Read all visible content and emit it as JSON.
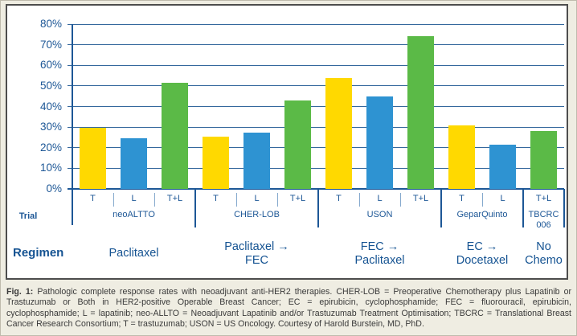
{
  "chart_data": {
    "type": "bar",
    "title": "",
    "ylabel": "",
    "ylim": [
      0,
      80
    ],
    "grid": true,
    "yticks": [
      {
        "value": 80,
        "label": "80%"
      },
      {
        "value": 70,
        "label": "70%"
      },
      {
        "value": 60,
        "label": "60%"
      },
      {
        "value": 50,
        "label": "50%"
      },
      {
        "value": 40,
        "label": "40%"
      },
      {
        "value": 30,
        "label": "30%"
      },
      {
        "value": 20,
        "label": "20%"
      },
      {
        "value": 10,
        "label": "10%"
      },
      {
        "value": 0,
        "label": "0%"
      }
    ],
    "series_colors": {
      "yellow": "#ffd900",
      "blue": "#2e93d2",
      "green": "#5bba47"
    },
    "groups": [
      {
        "trial": "neoALTTO",
        "regimen_lines": [
          "Paclitaxel"
        ],
        "bars": [
          {
            "label": "T",
            "value": 29.5,
            "color": "yellow"
          },
          {
            "label": "L",
            "value": 24.5,
            "color": "blue"
          },
          {
            "label": "T+L",
            "value": 51.5,
            "color": "green"
          }
        ]
      },
      {
        "trial": "CHER-LOB",
        "regimen_lines": [
          "Paclitaxel →",
          "FEC"
        ],
        "bars": [
          {
            "label": "T",
            "value": 25.5,
            "color": "yellow"
          },
          {
            "label": "L",
            "value": 27.5,
            "color": "blue"
          },
          {
            "label": "T+L",
            "value": 43,
            "color": "green"
          }
        ]
      },
      {
        "trial": "USON",
        "regimen_lines": [
          "FEC →",
          "Paclitaxel"
        ],
        "bars": [
          {
            "label": "T",
            "value": 54,
            "color": "yellow"
          },
          {
            "label": "L",
            "value": 45,
            "color": "blue"
          },
          {
            "label": "T+L",
            "value": 74,
            "color": "green"
          }
        ]
      },
      {
        "trial": "GeparQuinto",
        "regimen_lines": [
          "EC →",
          "Docetaxel"
        ],
        "bars": [
          {
            "label": "T",
            "value": 31,
            "color": "yellow"
          },
          {
            "label": "L",
            "value": 21.5,
            "color": "blue"
          }
        ]
      },
      {
        "trial": "TBCRC\n006",
        "regimen_lines": [
          "No",
          "Chemo"
        ],
        "bars": [
          {
            "label": "T+L",
            "value": 28,
            "color": "green"
          }
        ]
      }
    ]
  },
  "labels": {
    "trial_header": "Trial",
    "regimen_header": "Regimen"
  },
  "caption": {
    "prefix": "Fig. 1:",
    "text": " Pathologic complete response rates with neoadjuvant anti-HER2 therapies. CHER-LOB = Preoperative Chemotherapy plus Lapatinib or Trastuzumab or Both in HER2-positive Operable Breast Cancer; EC = epirubicin, cyclophosphamide; FEC = fluorouracil, epirubicin, cyclophosphamide; L = lapatinib; neo-ALLTO = Neoadjuvant Lapatinib and/or Trastuzumab Treatment Optimisation; TBCRC = Translational Breast Cancer Research Consortium; T = trastuzumab; USON = US Oncology. Courtesy of Harold Burstein, MD, PhD."
  },
  "colors": {
    "text_blue": "#1d5796",
    "gridline": "#35689d",
    "panel_border": "#4d4d4d",
    "background": "#efede2"
  }
}
